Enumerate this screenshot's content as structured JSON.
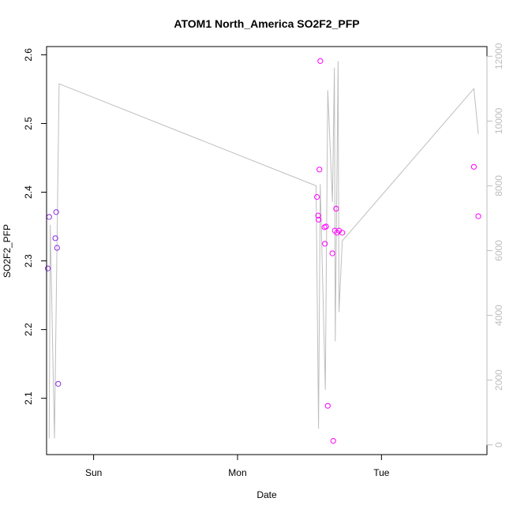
{
  "chart_data": {
    "type": "scatter",
    "title": "ATOM1 North_America SO2F2_PFP",
    "xlabel": "Date",
    "ylabel": "SO2F2_PFP",
    "x_unit": "days since Sun 00:00",
    "xlim": [
      -0.327,
      2.733
    ],
    "ylim": [
      2.018,
      2.612
    ],
    "y2lim": [
      -300,
      12300
    ],
    "x_ticks": [
      {
        "value": 0,
        "label": "Sun"
      },
      {
        "value": 1,
        "label": "Mon"
      },
      {
        "value": 2,
        "label": "Tue"
      }
    ],
    "y_ticks": [
      {
        "value": 2.1,
        "label": "2.1"
      },
      {
        "value": 2.2,
        "label": "2.2"
      },
      {
        "value": 2.3,
        "label": "2.3"
      },
      {
        "value": 2.4,
        "label": "2.4"
      },
      {
        "value": 2.5,
        "label": "2.5"
      },
      {
        "value": 2.6,
        "label": "2.6"
      }
    ],
    "y2_ticks": [
      {
        "value": 0,
        "label": "0"
      },
      {
        "value": 2000,
        "label": "2000"
      },
      {
        "value": 4000,
        "label": "4000"
      },
      {
        "value": 6000,
        "label": "6000"
      },
      {
        "value": 8000,
        "label": "8000"
      },
      {
        "value": 10000,
        "label": "10000"
      },
      {
        "value": 12000,
        "label": "12000"
      }
    ],
    "grid": false,
    "series": [
      {
        "kind": "points",
        "axis": "left",
        "color_early": "#8a2be2",
        "color_late": "#ff00ff",
        "points": [
          {
            "x": -0.318,
            "y": 2.289
          },
          {
            "x": -0.309,
            "y": 2.364
          },
          {
            "x": -0.266,
            "y": 2.333
          },
          {
            "x": -0.26,
            "y": 2.371
          },
          {
            "x": -0.254,
            "y": 2.319
          },
          {
            "x": -0.246,
            "y": 2.121
          },
          {
            "x": 1.552,
            "y": 2.393
          },
          {
            "x": 1.56,
            "y": 2.366
          },
          {
            "x": 1.563,
            "y": 2.36
          },
          {
            "x": 1.569,
            "y": 2.433
          },
          {
            "x": 1.575,
            "y": 2.591
          },
          {
            "x": 1.604,
            "y": 2.349
          },
          {
            "x": 1.607,
            "y": 2.325
          },
          {
            "x": 1.615,
            "y": 2.35
          },
          {
            "x": 1.627,
            "y": 2.089
          },
          {
            "x": 1.659,
            "y": 2.311
          },
          {
            "x": 1.665,
            "y": 2.038
          },
          {
            "x": 1.676,
            "y": 2.344
          },
          {
            "x": 1.685,
            "y": 2.376
          },
          {
            "x": 1.691,
            "y": 2.341
          },
          {
            "x": 1.705,
            "y": 2.344
          },
          {
            "x": 1.728,
            "y": 2.341
          },
          {
            "x": 2.642,
            "y": 2.437
          },
          {
            "x": 2.673,
            "y": 2.365
          }
        ]
      },
      {
        "kind": "line",
        "axis": "right",
        "color": "#bebebe",
        "points": [
          {
            "x": -0.309,
            "y": 200
          },
          {
            "x": -0.301,
            "y": 6800
          },
          {
            "x": -0.272,
            "y": 200
          },
          {
            "x": -0.24,
            "y": 11150
          },
          {
            "x": 1.546,
            "y": 8000
          },
          {
            "x": 1.563,
            "y": 500
          },
          {
            "x": 1.575,
            "y": 8050
          },
          {
            "x": 1.61,
            "y": 1700
          },
          {
            "x": 1.627,
            "y": 10950
          },
          {
            "x": 1.659,
            "y": 7500
          },
          {
            "x": 1.673,
            "y": 11650
          },
          {
            "x": 1.679,
            "y": 3200
          },
          {
            "x": 1.699,
            "y": 11850
          },
          {
            "x": 1.705,
            "y": 4100
          },
          {
            "x": 1.728,
            "y": 6300
          },
          {
            "x": 2.642,
            "y": 11000
          },
          {
            "x": 2.673,
            "y": 9600
          }
        ]
      }
    ]
  }
}
